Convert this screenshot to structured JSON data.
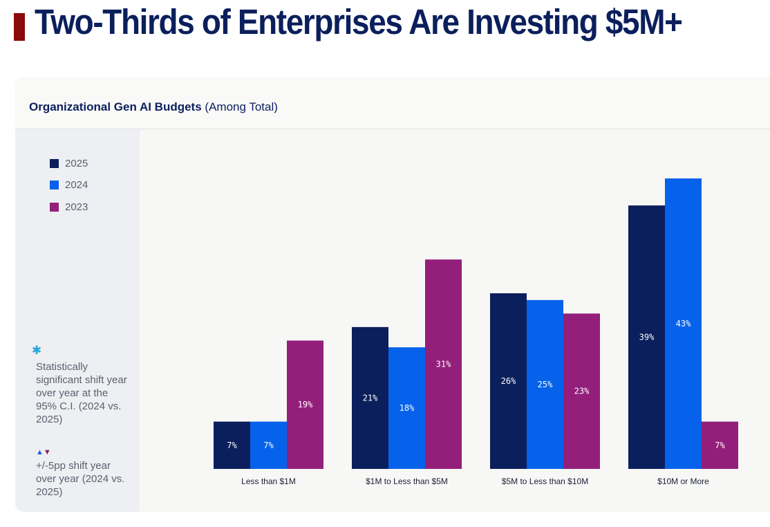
{
  "page": {
    "title": "Two-Thirds of Enterprises Are Investing $5M+"
  },
  "chart_data": {
    "type": "bar",
    "title": "Organizational Gen AI Budgets",
    "subtitle": "(Among Total)",
    "categories": [
      "Less than $1M",
      "$1M to Less than $5M",
      "$5M to Less than $10M",
      "$10M or More"
    ],
    "series": [
      {
        "name": "2025",
        "color": "#0b1f5c",
        "values": [
          7,
          21,
          26,
          39
        ]
      },
      {
        "name": "2024",
        "color": "#0662ea",
        "values": [
          7,
          18,
          25,
          43
        ]
      },
      {
        "name": "2023",
        "color": "#931f7a",
        "values": [
          19,
          31,
          23,
          7
        ]
      }
    ],
    "value_suffix": "%",
    "ylim": [
      0,
      43
    ],
    "grid": false,
    "legend_position": "left"
  },
  "notes": {
    "significance": "Statistically significant shift year over year at the 95% C.I. (2024 vs. 2025)",
    "shift": "+/-5pp shift year over year (2024 vs. 2025)",
    "star_icon": "asterisk-icon",
    "shift_icon": "up-down-triangles-icon"
  }
}
